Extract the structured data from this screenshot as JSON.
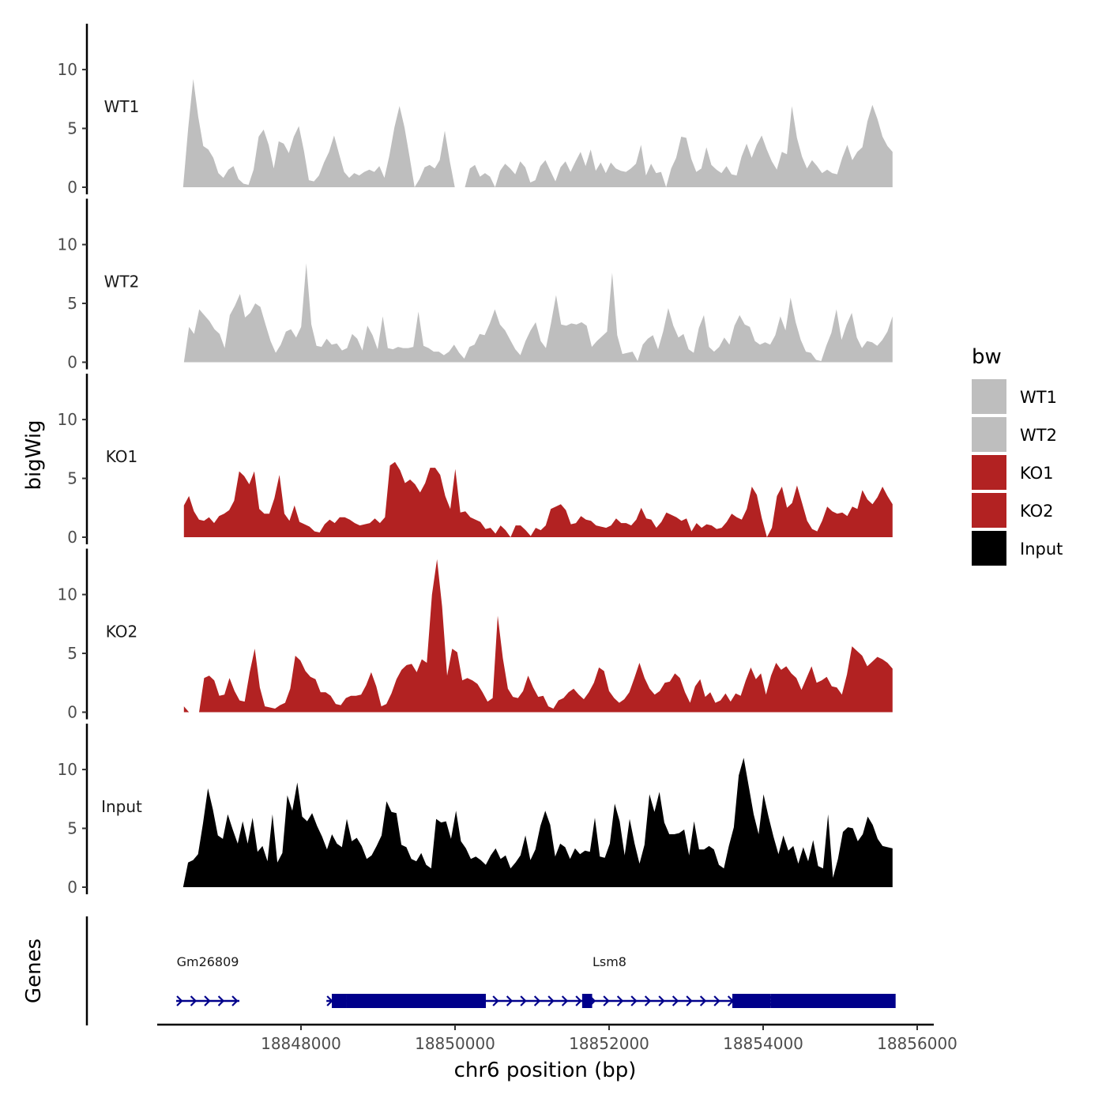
{
  "chart_data": {
    "type": "area",
    "ylabel": "bigWig",
    "xlabel": "chr6 position (bp)",
    "genes_axis_label": "Genes",
    "y_ticks": [
      0,
      5,
      10
    ],
    "ylim": [
      0,
      13.9
    ],
    "xlim": [
      18846000,
      18856200
    ],
    "x_ticks": [
      18848000,
      18850000,
      18852000,
      18854000,
      18856000
    ],
    "x_tick_labels": [
      "18848000",
      "18850000",
      "18852000",
      "18854000",
      "18856000"
    ],
    "legend": {
      "title": "bw",
      "entries": [
        {
          "label": "WT1",
          "color": "#bebebe"
        },
        {
          "label": "WT2",
          "color": "#bebebe"
        },
        {
          "label": "KO1",
          "color": "#b22222"
        },
        {
          "label": "KO2",
          "color": "#b22222"
        },
        {
          "label": "Input",
          "color": "#000000"
        }
      ]
    },
    "series": [
      {
        "name": "WT1",
        "color": "#bebebe",
        "x_start": 18846470,
        "x_end": 18855680,
        "values": [
          0,
          5,
          9.2,
          6,
          3.5,
          3.2,
          2.5,
          1.2,
          0.8,
          1.5,
          1.8,
          0.7,
          0.3,
          0.2,
          1.5,
          4.3,
          4.9,
          3.6,
          1.6,
          3.9,
          3.7,
          2.9,
          4.3,
          5.2,
          3.1,
          0.6,
          0.5,
          1,
          2.1,
          3,
          4.4,
          2.8,
          1.3,
          0.8,
          1.2,
          1,
          1.3,
          1.5,
          1.3,
          1.8,
          0.8,
          2.7,
          5.1,
          6.9,
          5.1,
          2.6,
          0,
          0.7,
          1.7,
          1.9,
          1.6,
          2.3,
          4.8,
          2.2,
          0,
          0,
          0,
          1.6,
          1.9,
          0.9,
          1.2,
          0.9,
          0,
          1.4,
          2,
          1.6,
          1.1,
          2.2,
          1.7,
          0.4,
          0.6,
          1.8,
          2.3,
          1.4,
          0.5,
          1.7,
          2.2,
          1.3,
          2.2,
          3,
          1.8,
          3.2,
          1.4,
          2.1,
          1.2,
          2.1,
          1.6,
          1.4,
          1.3,
          1.6,
          2,
          3.6,
          1,
          2,
          1.2,
          1.3,
          0,
          1.6,
          2.5,
          4.3,
          4.2,
          2.4,
          1.3,
          1.6,
          3.4,
          1.9,
          1.5,
          1.2,
          1.8,
          1.1,
          1,
          2.6,
          3.7,
          2.5,
          3.6,
          4.4,
          3.2,
          2.2,
          1.5,
          3,
          2.8,
          6.9,
          4.2,
          2.6,
          1.6,
          2.3,
          1.8,
          1.2,
          1.5,
          1.2,
          1.1,
          2.5,
          3.6,
          2.3,
          3,
          3.4,
          5.6,
          7,
          5.8,
          4.3,
          3.5,
          3
        ]
      },
      {
        "name": "WT2",
        "color": "#bebebe",
        "x_start": 18846480,
        "x_end": 18855680,
        "values": [
          0,
          3,
          2.4,
          4.5,
          4,
          3.5,
          2.8,
          2.4,
          1.2,
          4,
          4.8,
          5.8,
          3.8,
          4.2,
          5,
          4.7,
          3.2,
          1.8,
          0.8,
          1.5,
          2.6,
          2.8,
          2.1,
          3,
          8.4,
          3.2,
          1.4,
          1.3,
          2,
          1.5,
          1.6,
          1,
          1.2,
          2.4,
          2,
          1,
          3.1,
          2.3,
          1.1,
          3.9,
          1.2,
          1.1,
          1.3,
          1.2,
          1.2,
          1.3,
          4.3,
          1.4,
          1.2,
          0.9,
          0.9,
          0.6,
          0.9,
          1.5,
          0.8,
          0.3,
          1.3,
          1.5,
          2.4,
          2.3,
          3.3,
          4.5,
          3.2,
          2.7,
          1.9,
          1.1,
          0.6,
          1.8,
          2.7,
          3.4,
          1.8,
          1.2,
          3.3,
          5.7,
          3.2,
          3.1,
          3.3,
          3.2,
          3.4,
          3.1,
          1.3,
          1.8,
          2.2,
          2.6,
          7.6,
          2.3,
          0.7,
          0.8,
          0.9,
          0.1,
          1.5,
          2,
          2.3,
          1.1,
          2.6,
          4.6,
          3.1,
          2.1,
          2.4,
          1.1,
          0.8,
          2.9,
          4,
          1.3,
          0.9,
          1.3,
          2.1,
          1.5,
          3.1,
          4,
          3.2,
          3,
          1.8,
          1.5,
          1.7,
          1.5,
          2.3,
          3.9,
          2.7,
          5.5,
          3.4,
          1.9,
          0.9,
          0.8,
          0.2,
          0.1,
          1.4,
          2.5,
          4.5,
          1.9,
          3.2,
          4.2,
          2.1,
          1.2,
          1.8,
          1.7,
          1.4,
          1.9,
          2.6,
          3.9
        ]
      },
      {
        "name": "KO1",
        "color": "#b22222",
        "x_start": 18846480,
        "x_end": 18855680,
        "values": [
          2.7,
          3.5,
          2.2,
          1.5,
          1.4,
          1.7,
          1.2,
          1.8,
          2,
          2.3,
          3.1,
          5.6,
          5.2,
          4.5,
          5.6,
          2.4,
          2,
          2,
          3.3,
          5.3,
          2,
          1.4,
          2.7,
          1.3,
          1.1,
          0.9,
          0.5,
          0.4,
          1.1,
          1.5,
          1.2,
          1.7,
          1.7,
          1.5,
          1.2,
          1,
          1.1,
          1.2,
          1.6,
          1.2,
          1.7,
          6.1,
          6.4,
          5.7,
          4.6,
          4.9,
          4.5,
          3.8,
          4.6,
          5.9,
          5.9,
          5.3,
          3.5,
          2.4,
          5.8,
          2.1,
          2.2,
          1.7,
          1.5,
          1.3,
          0.7,
          0.8,
          0.3,
          1,
          0.6,
          0,
          1,
          1,
          0.6,
          0.1,
          0.8,
          0.6,
          1,
          2.4,
          2.6,
          2.8,
          2.3,
          1.1,
          1.2,
          1.8,
          1.5,
          1.4,
          1,
          0.9,
          0.8,
          1,
          1.6,
          1.2,
          1.2,
          1,
          1.5,
          2.5,
          1.6,
          1.5,
          0.8,
          1.3,
          2.1,
          1.9,
          1.7,
          1.4,
          1.6,
          0.5,
          1.2,
          0.8,
          1.1,
          1,
          0.7,
          0.8,
          1.3,
          2,
          1.7,
          1.5,
          2.4,
          4.3,
          3.6,
          1.6,
          0,
          0.8,
          3.5,
          4.3,
          2.5,
          2.9,
          4.4,
          2.9,
          1.4,
          0.7,
          0.5,
          1.4,
          2.6,
          2.2,
          2,
          2.1,
          1.8,
          2.6,
          2.4,
          4,
          3.2,
          2.8,
          3.4,
          4.3,
          3.5,
          2.8
        ]
      },
      {
        "name": "KO2",
        "color": "#b22222",
        "x_start": 18846480,
        "x_end": 18855680,
        "values": [
          0.5,
          0,
          0,
          0,
          2.9,
          3.1,
          2.7,
          1.4,
          1.5,
          2.9,
          1.8,
          1,
          0.9,
          3.4,
          5.4,
          2.1,
          0.5,
          0.4,
          0.3,
          0.6,
          0.8,
          2,
          4.8,
          4.4,
          3.5,
          3,
          2.8,
          1.7,
          1.7,
          1.4,
          0.7,
          0.6,
          1.2,
          1.4,
          1.4,
          1.5,
          2.3,
          3.4,
          2.2,
          0.5,
          0.7,
          1.6,
          2.8,
          3.6,
          4,
          4.1,
          3.4,
          4.5,
          4.2,
          10,
          13,
          9,
          3.1,
          5.4,
          5.1,
          2.7,
          2.9,
          2.7,
          2.4,
          1.7,
          0.9,
          1.2,
          8.2,
          4.6,
          2,
          1.3,
          1.2,
          1.8,
          3.1,
          2.1,
          1.3,
          1.4,
          0.5,
          0.3,
          1,
          1.2,
          1.7,
          2,
          1.5,
          1.1,
          1.7,
          2.5,
          3.8,
          3.5,
          1.8,
          1.2,
          0.8,
          1.1,
          1.7,
          2.9,
          4.2,
          2.9,
          2,
          1.5,
          1.8,
          2.5,
          2.6,
          3.3,
          2.9,
          1.7,
          0.8,
          2.2,
          2.8,
          1.3,
          1.7,
          0.8,
          1,
          1.6,
          0.9,
          1.6,
          1.4,
          2.7,
          3.8,
          2.8,
          3.3,
          1.5,
          3.1,
          4.2,
          3.6,
          3.9,
          3.3,
          2.9,
          1.9,
          2.9,
          3.9,
          2.5,
          2.7,
          3,
          2.2,
          2.1,
          1.5,
          3.2,
          5.6,
          5.2,
          4.8,
          3.9,
          4.3,
          4.7,
          4.5,
          4.2,
          3.7
        ]
      },
      {
        "name": "Input",
        "color": "#000000",
        "x_start": 18846470,
        "x_end": 18855680,
        "values": [
          0,
          2.1,
          2.3,
          2.8,
          5.4,
          8.4,
          6.6,
          4.4,
          4.1,
          6.2,
          4.9,
          3.7,
          5.6,
          3.7,
          5.9,
          3,
          3.5,
          2.2,
          6.2,
          2.1,
          2.9,
          7.8,
          6.5,
          8.9,
          6,
          5.6,
          6.3,
          5.2,
          4.3,
          3.2,
          4.5,
          3.7,
          3.4,
          5.8,
          3.9,
          4.2,
          3.5,
          2.4,
          2.7,
          3.5,
          4.4,
          7.3,
          6.4,
          6.3,
          3.6,
          3.4,
          2.4,
          2.2,
          2.9,
          1.9,
          1.6,
          5.8,
          5.5,
          5.6,
          4.1,
          6.5,
          3.9,
          3.3,
          2.4,
          2.6,
          2.3,
          1.9,
          2.7,
          3.3,
          2.4,
          2.7,
          1.6,
          2.1,
          2.7,
          4.4,
          2.3,
          3.2,
          5.2,
          6.5,
          5.3,
          2.6,
          3.7,
          3.4,
          2.4,
          3.3,
          2.8,
          3.1,
          3,
          5.9,
          2.6,
          2.5,
          3.7,
          7.1,
          5.6,
          2.7,
          5.8,
          3.7,
          2,
          3.6,
          7.9,
          6.4,
          8.1,
          5.5,
          4.5,
          4.5,
          4.6,
          4.9,
          2.7,
          5.6,
          3.2,
          3.2,
          3.5,
          3.2,
          1.9,
          1.6,
          3.5,
          5.1,
          9.5,
          11,
          8.6,
          6.2,
          4.5,
          7.9,
          6,
          4.3,
          2.8,
          4.4,
          3.1,
          3.5,
          2,
          3.4,
          2.2,
          4,
          1.8,
          1.6,
          6.2,
          0.8,
          2.4,
          4.7,
          5.1,
          5,
          3.9,
          4.5,
          6,
          5.3,
          4.1,
          3.5,
          3.4,
          3.3
        ]
      }
    ],
    "genes": [
      {
        "name": "Gm26809",
        "start": 18846380,
        "end": 18847200,
        "strand": "+",
        "exons": []
      },
      {
        "name": "Lsm8",
        "start": 18848330,
        "end": 18855680,
        "strand": "+",
        "exons": [
          [
            18848400,
            18848590
          ],
          [
            18848590,
            18849000
          ],
          [
            18849000,
            18850400
          ],
          [
            18851650,
            18851780
          ],
          [
            18853600,
            18854100
          ],
          [
            18854100,
            18855720
          ]
        ]
      }
    ]
  }
}
